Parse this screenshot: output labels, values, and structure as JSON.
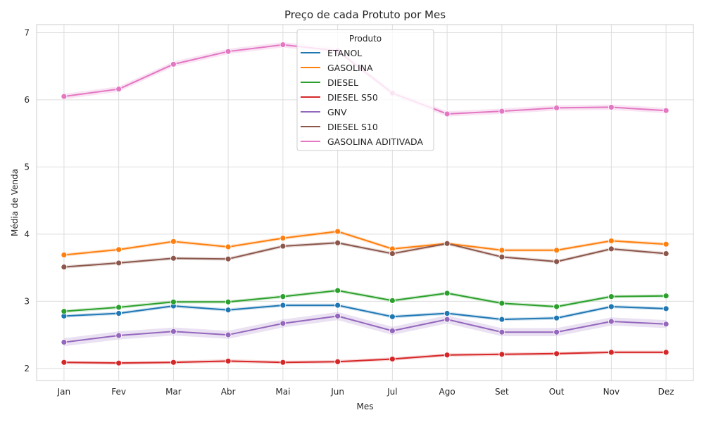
{
  "chart_data": {
    "type": "line",
    "title": "Preço de cada Protuto por Mes",
    "xlabel": "Mes",
    "ylabel": "Média de Venda",
    "categories": [
      "Jan",
      "Fev",
      "Mar",
      "Abr",
      "Mai",
      "Jun",
      "Jul",
      "Ago",
      "Set",
      "Out",
      "Nov",
      "Dez"
    ],
    "ylim": [
      1.82,
      7.12
    ],
    "yticks": [
      2,
      3,
      4,
      5,
      6,
      7
    ],
    "grid": true,
    "legend": {
      "title": "Produto",
      "placement": "top-center"
    },
    "series": [
      {
        "name": "ETANOL",
        "color": "#1f77b4",
        "values": [
          2.78,
          2.82,
          2.93,
          2.87,
          2.94,
          2.94,
          2.77,
          2.82,
          2.73,
          2.75,
          2.92,
          2.89
        ]
      },
      {
        "name": "GASOLINA",
        "color": "#ff7f0e",
        "values": [
          3.69,
          3.77,
          3.89,
          3.81,
          3.94,
          4.04,
          3.78,
          3.86,
          3.76,
          3.76,
          3.9,
          3.85
        ]
      },
      {
        "name": "DIESEL",
        "color": "#2ca02c",
        "values": [
          2.85,
          2.91,
          2.99,
          2.99,
          3.07,
          3.16,
          3.01,
          3.12,
          2.97,
          2.92,
          3.07,
          3.08
        ]
      },
      {
        "name": "DIESEL S50",
        "color": "#d62728",
        "values": [
          2.09,
          2.08,
          2.09,
          2.11,
          2.09,
          2.1,
          2.14,
          2.2,
          2.21,
          2.22,
          2.24,
          2.24
        ]
      },
      {
        "name": "GNV",
        "color": "#9467bd",
        "values": [
          2.39,
          2.49,
          2.55,
          2.5,
          2.67,
          2.78,
          2.56,
          2.73,
          2.54,
          2.54,
          2.7,
          2.66
        ]
      },
      {
        "name": "DIESEL S10",
        "color": "#8c564b",
        "values": [
          3.51,
          3.57,
          3.64,
          3.63,
          3.82,
          3.87,
          3.71,
          3.86,
          3.66,
          3.59,
          3.78,
          3.71
        ]
      },
      {
        "name": "GASOLINA ADITIVADA",
        "color": "#e377c2",
        "values": [
          6.05,
          6.16,
          6.53,
          6.72,
          6.82,
          6.73,
          6.1,
          5.79,
          5.83,
          5.88,
          5.89,
          5.84
        ]
      }
    ]
  }
}
